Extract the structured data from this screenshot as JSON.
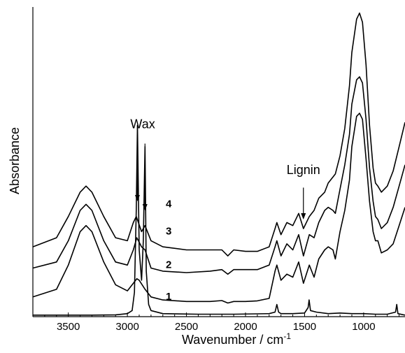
{
  "chart_data": {
    "type": "line",
    "xlabel": "Wavenumber / cm",
    "xlabel_superscript": "-1",
    "ylabel": "Absorbance",
    "xlim": [
      3800,
      650
    ],
    "x_reversed": true,
    "ylim": [
      0,
      1.02
    ],
    "y_ticks_shown": false,
    "grid": false,
    "legend": "none",
    "x_ticks": [
      3500,
      3000,
      2500,
      2000,
      1500,
      1000
    ],
    "x_tick_labels": [
      "3500",
      "3000",
      "2500",
      "2000",
      "1500",
      "1000"
    ],
    "line_color": "#000000",
    "series": [
      {
        "name": "1",
        "x": [
          3800,
          3500,
          3300,
          3100,
          3000,
          2960,
          2940,
          2925,
          2915,
          2900,
          2880,
          2865,
          2851,
          2840,
          2820,
          2800,
          2700,
          2400,
          2100,
          1800,
          1750,
          1735,
          1720,
          1700,
          1600,
          1500,
          1470,
          1462,
          1450,
          1400,
          1300,
          1200,
          1100,
          1000,
          900,
          800,
          730,
          720,
          710,
          650
        ],
        "y": [
          0.005,
          0.005,
          0.005,
          0.006,
          0.01,
          0.02,
          0.08,
          0.35,
          0.63,
          0.22,
          0.12,
          0.25,
          0.56,
          0.15,
          0.04,
          0.02,
          0.01,
          0.008,
          0.008,
          0.01,
          0.015,
          0.04,
          0.015,
          0.01,
          0.01,
          0.012,
          0.03,
          0.055,
          0.02,
          0.015,
          0.01,
          0.012,
          0.01,
          0.01,
          0.008,
          0.008,
          0.015,
          0.04,
          0.01,
          0.005
        ]
      },
      {
        "name": "2",
        "x": [
          3800,
          3600,
          3500,
          3400,
          3350,
          3300,
          3200,
          3100,
          3000,
          2950,
          2920,
          2900,
          2850,
          2800,
          2700,
          2500,
          2300,
          2200,
          2150,
          2100,
          2000,
          1900,
          1800,
          1750,
          1735,
          1700,
          1650,
          1600,
          1550,
          1510,
          1460,
          1420,
          1380,
          1330,
          1300,
          1260,
          1240,
          1200,
          1160,
          1120,
          1100,
          1060,
          1035,
          1010,
          980,
          950,
          920,
          900,
          880,
          850,
          800,
          750,
          700,
          650
        ],
        "y": [
          0.065,
          0.09,
          0.17,
          0.28,
          0.3,
          0.28,
          0.18,
          0.105,
          0.085,
          0.11,
          0.125,
          0.12,
          0.09,
          0.065,
          0.055,
          0.05,
          0.05,
          0.053,
          0.045,
          0.05,
          0.05,
          0.052,
          0.06,
          0.15,
          0.17,
          0.12,
          0.14,
          0.13,
          0.18,
          0.11,
          0.17,
          0.13,
          0.19,
          0.22,
          0.23,
          0.22,
          0.19,
          0.28,
          0.35,
          0.45,
          0.56,
          0.66,
          0.67,
          0.65,
          0.52,
          0.38,
          0.28,
          0.25,
          0.25,
          0.21,
          0.22,
          0.24,
          0.3,
          0.36
        ]
      },
      {
        "name": "3",
        "x": [
          3800,
          3600,
          3500,
          3400,
          3350,
          3300,
          3200,
          3100,
          3000,
          2950,
          2920,
          2880,
          2851,
          2800,
          2700,
          2500,
          2300,
          2200,
          2150,
          2100,
          2000,
          1900,
          1800,
          1750,
          1735,
          1700,
          1650,
          1600,
          1550,
          1510,
          1460,
          1420,
          1380,
          1330,
          1300,
          1260,
          1240,
          1200,
          1160,
          1120,
          1100,
          1060,
          1035,
          1010,
          980,
          950,
          920,
          900,
          880,
          850,
          800,
          750,
          700,
          650
        ],
        "y": [
          0.16,
          0.18,
          0.25,
          0.35,
          0.37,
          0.35,
          0.25,
          0.18,
          0.17,
          0.22,
          0.26,
          0.23,
          0.22,
          0.16,
          0.15,
          0.145,
          0.15,
          0.155,
          0.14,
          0.155,
          0.155,
          0.155,
          0.17,
          0.23,
          0.25,
          0.2,
          0.24,
          0.22,
          0.27,
          0.2,
          0.27,
          0.26,
          0.31,
          0.35,
          0.36,
          0.35,
          0.34,
          0.42,
          0.5,
          0.6,
          0.7,
          0.78,
          0.79,
          0.77,
          0.65,
          0.49,
          0.38,
          0.33,
          0.32,
          0.29,
          0.31,
          0.36,
          0.43,
          0.5
        ]
      },
      {
        "name": "4",
        "x": [
          3800,
          3600,
          3500,
          3400,
          3350,
          3300,
          3200,
          3100,
          3000,
          2950,
          2925,
          2880,
          2851,
          2800,
          2700,
          2500,
          2300,
          2200,
          2150,
          2100,
          2000,
          1900,
          1800,
          1750,
          1735,
          1700,
          1650,
          1600,
          1550,
          1510,
          1460,
          1420,
          1380,
          1330,
          1300,
          1260,
          1240,
          1200,
          1160,
          1120,
          1100,
          1060,
          1035,
          1010,
          980,
          950,
          920,
          900,
          880,
          850,
          800,
          750,
          700,
          650
        ],
        "y": [
          0.23,
          0.26,
          0.33,
          0.41,
          0.43,
          0.41,
          0.33,
          0.26,
          0.25,
          0.31,
          0.33,
          0.28,
          0.3,
          0.25,
          0.23,
          0.22,
          0.22,
          0.22,
          0.2,
          0.22,
          0.215,
          0.215,
          0.23,
          0.29,
          0.31,
          0.27,
          0.31,
          0.3,
          0.34,
          0.29,
          0.33,
          0.35,
          0.39,
          0.41,
          0.44,
          0.46,
          0.47,
          0.53,
          0.62,
          0.76,
          0.87,
          0.98,
          1.0,
          0.97,
          0.83,
          0.63,
          0.49,
          0.44,
          0.43,
          0.41,
          0.43,
          0.48,
          0.56,
          0.64
        ]
      }
    ],
    "series_labels": [
      {
        "text": "1",
        "x": 2650,
        "y": 0.055
      },
      {
        "text": "2",
        "x": 2650,
        "y": 0.16
      },
      {
        "text": "3",
        "x": 2650,
        "y": 0.27
      },
      {
        "text": "4",
        "x": 2650,
        "y": 0.36
      }
    ],
    "annotations": [
      {
        "text": "Wax",
        "label_x": 2870,
        "label_y": 0.62,
        "arrows": [
          {
            "x": 2915,
            "y_from": 0.57,
            "y_to": 0.38
          },
          {
            "x": 2851,
            "y_from": 0.57,
            "y_to": 0.35
          }
        ]
      },
      {
        "text": "Lignin",
        "label_x": 1510,
        "label_y": 0.47,
        "arrows": [
          {
            "x": 1510,
            "y_from": 0.425,
            "y_to": 0.32
          }
        ]
      }
    ]
  }
}
